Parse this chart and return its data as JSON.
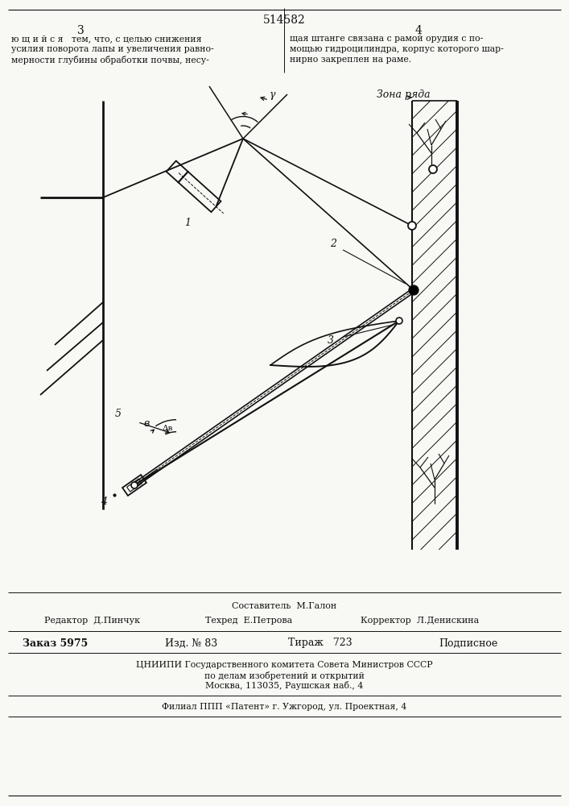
{
  "bg_color": "#f8f8f4",
  "line_color": "#111111",
  "page_number": "514582",
  "col_left": "3",
  "col_right": "4",
  "text_left_line1": "ю щ и й с я   тем, что, с целью снижения",
  "text_left_line2": "усилия поворота лапы и увеличения равно-",
  "text_left_line3": "мерности глубины обработки почвы, несу-",
  "text_right_line1": "щая штанге связана с рамой орудия с по-",
  "text_right_line2": "мощью гидроцилиндра, корпус которого шар-",
  "text_right_line3": "нирно закреплен на раме.",
  "zona_ryada": "Зона ряда",
  "label_1": "1",
  "label_2": "2",
  "label_3": "3",
  "label_4": "4",
  "label_5": "5",
  "label_gamma": "γ",
  "label_b": "в",
  "label_delta_b": "Δв",
  "footer_composer": "Составитель  М.Галон",
  "footer_editor": "Редактор  Д.Пинчук",
  "footer_techred": "Техред  Е.Петрова",
  "footer_corrector": "Корректор  Л.Денискина",
  "footer_order": "Заказ 5975",
  "footer_izd": "Изд. № 83",
  "footer_tirazh": "Тираж   723",
  "footer_podpisnoe": "Подписное",
  "footer_cniipи": "ЦНИИПИ Государственного комитета Совета Министров СССР",
  "footer_po_delam": "по делам изобретений и открытий",
  "footer_moskva": "Москва, 113035, Раушская наб., 4",
  "footer_filial": "Филиал ППП «Патент» г. Ужгород, ул. Проектная, 4"
}
